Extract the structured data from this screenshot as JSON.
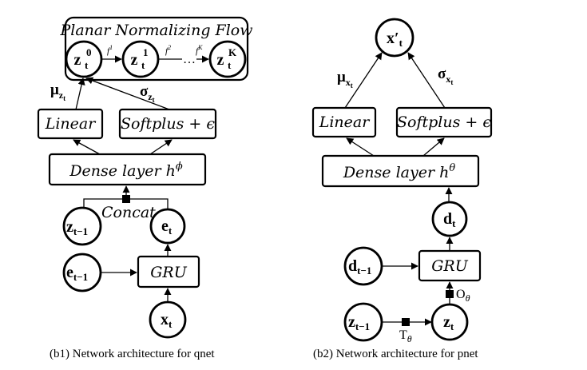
{
  "qnet": {
    "flow_title": "Planar Normalizing Flow",
    "z0": {
      "base": "z",
      "sub": "t",
      "sup": "0"
    },
    "z1": {
      "base": "z",
      "sub": "t",
      "sup": "1"
    },
    "zK": {
      "base": "z",
      "sub": "t",
      "sup": "K"
    },
    "f1": "f",
    "f1_sup": "1",
    "f2": "f",
    "f2_sup": "2",
    "dots": "…",
    "fK": "f",
    "fK_sup": "K",
    "mu": {
      "base": "μ",
      "sub": "z",
      "subsub": "t"
    },
    "sigma": {
      "base": "σ",
      "sub": "z",
      "subsub": "t"
    },
    "linear": "Linear",
    "softplus": "Softplus + ϵ",
    "dense": {
      "text": "Dense layer h",
      "sup": "ϕ"
    },
    "concat": "Concat",
    "z_prev": {
      "base": "z",
      "sub": "t−1"
    },
    "e_t": {
      "base": "e",
      "sub": "t"
    },
    "e_prev": {
      "base": "e",
      "sub": "t−1"
    },
    "gru": "GRU",
    "x_t": {
      "base": "x",
      "sub": "t"
    },
    "caption": "(b1) Network architecture  for qnet"
  },
  "pnet": {
    "x_out": {
      "base": "x",
      "prime": "′",
      "sub": "t"
    },
    "mu": {
      "base": "μ",
      "sub": "x",
      "subsub": "t"
    },
    "sigma": {
      "base": "σ",
      "sub": "x",
      "subsub": "t"
    },
    "linear": "Linear",
    "softplus": "Softplus + ϵ",
    "dense": {
      "text": "Dense layer h",
      "sup": "θ"
    },
    "d_t": {
      "base": "d",
      "sub": "t"
    },
    "d_prev": {
      "base": "d",
      "sub": "t−1"
    },
    "gru": "GRU",
    "o_theta": {
      "base": "O",
      "sub": "θ"
    },
    "z_prev": {
      "base": "z",
      "sub": "t−1"
    },
    "t_theta": {
      "base": "T",
      "sub": "θ"
    },
    "z_t": {
      "base": "z",
      "sub": "t"
    },
    "caption": "(b2) Network architecture  for pnet"
  }
}
